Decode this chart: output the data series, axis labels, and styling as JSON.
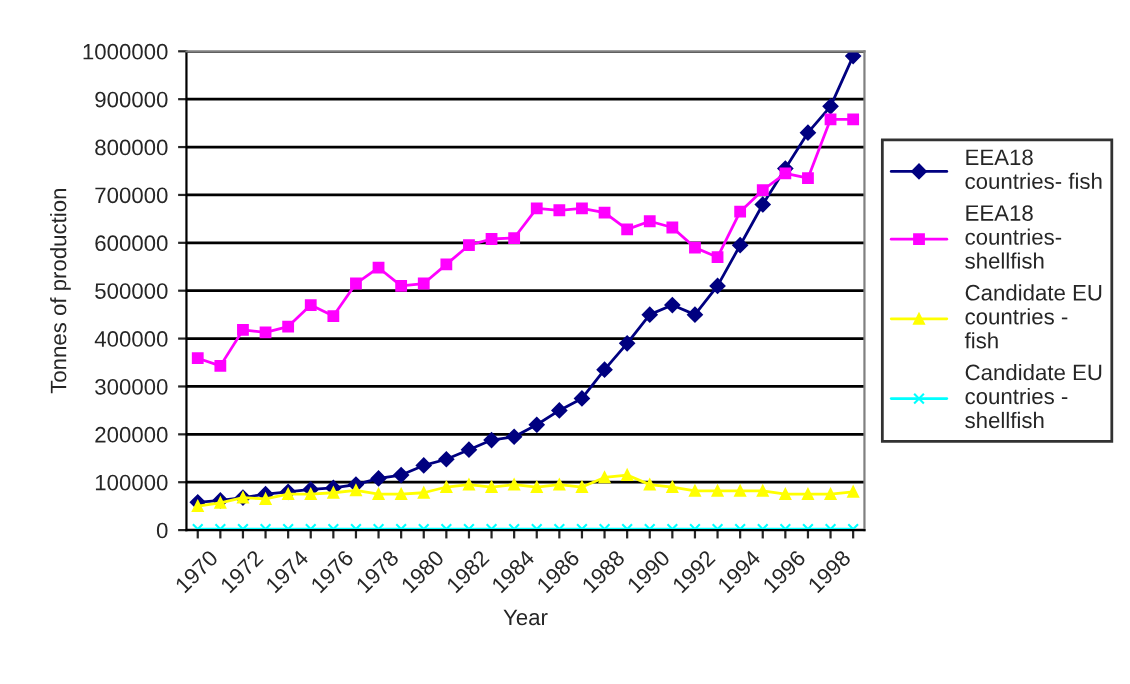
{
  "chart_data": {
    "type": "line",
    "xlabel": "Year",
    "ylabel": "Tonnes of production",
    "categories": [
      "1970",
      null,
      "1972",
      null,
      "1974",
      null,
      "1976",
      null,
      "1978",
      null,
      "1980",
      null,
      "1982",
      null,
      "1984",
      null,
      "1986",
      null,
      "1988",
      null,
      "1990",
      null,
      "1992",
      null,
      "1994",
      null,
      "1996",
      null,
      "1998",
      null
    ],
    "series": [
      {
        "name": "EEA18 countries- fish",
        "color": "#000080",
        "marker": "diamond",
        "values": [
          58000,
          62000,
          68000,
          75000,
          80000,
          85000,
          88000,
          95000,
          108000,
          115000,
          135000,
          148000,
          168000,
          188000,
          195000,
          220000,
          250000,
          275000,
          335000,
          390000,
          450000,
          470000,
          450000,
          510000,
          595000,
          680000,
          755000,
          830000,
          885000,
          990000
        ]
      },
      {
        "name": "EEA18 countries- shellfish",
        "color": "#ff00ff",
        "marker": "square",
        "values": [
          359000,
          343000,
          418000,
          413000,
          425000,
          470000,
          447000,
          515000,
          548000,
          510000,
          515000,
          555000,
          595000,
          608000,
          610000,
          672000,
          668000,
          672000,
          663000,
          628000,
          645000,
          632000,
          590000,
          570000,
          665000,
          710000,
          745000,
          735000,
          858000,
          858000
        ]
      },
      {
        "name": "Candidate EU countries - fish",
        "color": "#ffff00",
        "marker": "triangle",
        "values": [
          50000,
          57000,
          68000,
          65000,
          75000,
          75000,
          78000,
          83000,
          75000,
          75000,
          78000,
          90000,
          95000,
          90000,
          95000,
          90000,
          95000,
          90000,
          110000,
          115000,
          95000,
          90000,
          82000,
          82000,
          82000,
          82000,
          75000,
          75000,
          75000,
          80000
        ]
      },
      {
        "name": "Candidate EU countries - shellfish",
        "color": "#00ffff",
        "marker": "cross",
        "values": [
          2000,
          2000,
          2000,
          2000,
          2000,
          2000,
          2000,
          2000,
          2000,
          2000,
          2000,
          2000,
          2000,
          2000,
          2000,
          2000,
          2000,
          2000,
          2000,
          2000,
          2000,
          2000,
          2000,
          2000,
          2000,
          2000,
          2000,
          2000,
          2000,
          2000
        ]
      }
    ],
    "ylim": [
      0,
      1000000
    ],
    "yticks": [
      0,
      100000,
      200000,
      300000,
      400000,
      500000,
      600000,
      700000,
      800000,
      900000,
      1000000
    ],
    "grid": "y",
    "legend": "right"
  }
}
